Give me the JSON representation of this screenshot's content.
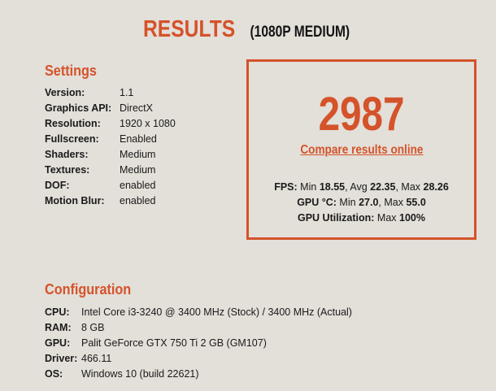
{
  "title": {
    "main": "RESULTS",
    "sub": "(1080P MEDIUM)"
  },
  "settings": {
    "heading": "Settings",
    "rows": [
      {
        "label": "Version:",
        "value": "1.1"
      },
      {
        "label": "Graphics API:",
        "value": "DirectX"
      },
      {
        "label": "Resolution:",
        "value": "1920 x 1080"
      },
      {
        "label": "Fullscreen:",
        "value": "Enabled"
      },
      {
        "label": "Shaders:",
        "value": "Medium"
      },
      {
        "label": "Textures:",
        "value": "Medium"
      },
      {
        "label": "DOF:",
        "value": "enabled"
      },
      {
        "label": "Motion Blur:",
        "value": "enabled"
      }
    ]
  },
  "result": {
    "score": "2987",
    "link": "Compare results online",
    "fps": {
      "label": "FPS:",
      "min_l": "Min",
      "min": "18.55",
      "avg_l": "Avg",
      "avg": "22.35",
      "max_l": "Max",
      "max": "28.26"
    },
    "temp": {
      "label": "GPU °C:",
      "min_l": "Min",
      "min": "27.0",
      "max_l": "Max",
      "max": "55.0"
    },
    "util": {
      "label": "GPU Utilization:",
      "max_l": "Max",
      "max": "100%"
    }
  },
  "configuration": {
    "heading": "Configuration",
    "rows": [
      {
        "label": "CPU:",
        "value": "Intel Core i3-3240 @ 3400 MHz (Stock) / 3400 MHz (Actual)"
      },
      {
        "label": "RAM:",
        "value": "8 GB"
      },
      {
        "label": "GPU:",
        "value": "Palit GeForce GTX 750 Ti 2 GB (GM107)"
      },
      {
        "label": "Driver:",
        "value": "466.11"
      },
      {
        "label": "OS:",
        "value": "Windows 10 (build 22621)"
      }
    ]
  },
  "colors": {
    "accent": "#d4532a",
    "background": "#e3dfd9"
  }
}
